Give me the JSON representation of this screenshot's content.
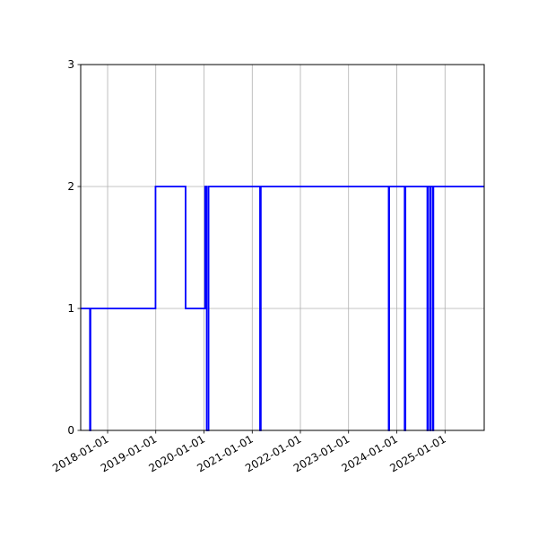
{
  "chart_data": {
    "type": "line",
    "step": true,
    "title": "",
    "xlabel": "",
    "ylabel": "",
    "xlim": [
      "2017-06-11",
      "2025-10-25"
    ],
    "ylim": [
      0,
      3
    ],
    "grid": true,
    "yticks": [
      0,
      1,
      2,
      3
    ],
    "xticks": [
      "2018-01-01",
      "2019-01-01",
      "2020-01-01",
      "2021-01-01",
      "2022-01-01",
      "2023-01-01",
      "2024-01-01",
      "2025-01-01"
    ],
    "series": [
      {
        "color": "#0000ff",
        "x": [
          "2017-06-11",
          "2017-08-20",
          "2017-08-24",
          "2018-12-30",
          "2019-08-15",
          "2020-01-10",
          "2020-01-22",
          "2020-02-05",
          "2021-03-01",
          "2021-03-07",
          "2023-11-01",
          "2023-11-05",
          "2024-03-01",
          "2024-03-07",
          "2024-08-20",
          "2024-08-25",
          "2024-09-10",
          "2024-09-15",
          "2024-10-01",
          "2024-10-05"
        ],
        "y": [
          1,
          0,
          1,
          2,
          1,
          2,
          0,
          2,
          0,
          2,
          0,
          2,
          0,
          2,
          0,
          2,
          0,
          2,
          0,
          2
        ]
      }
    ]
  }
}
